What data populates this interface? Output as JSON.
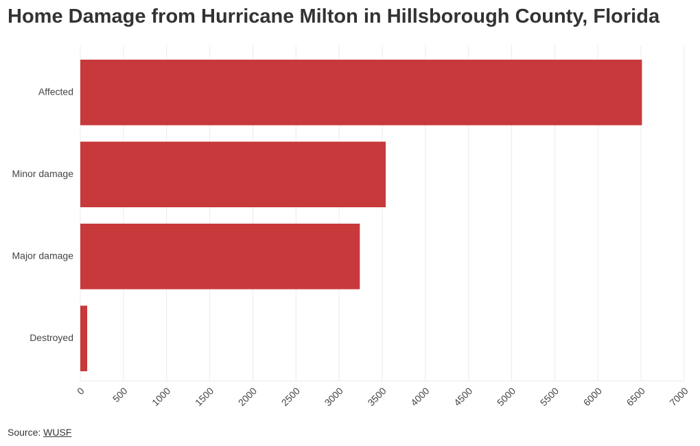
{
  "title": "Home Damage from Hurricane Milton in Hillsborough County, Florida",
  "source": {
    "prefix": "Source:",
    "link_text": "WUSF"
  },
  "colors": {
    "bar": "#c8393b",
    "grid": "#ebebeb",
    "axis_text": "#444444"
  },
  "chart_data": {
    "type": "bar",
    "orientation": "horizontal",
    "title": "Home Damage from Hurricane Milton in Hillsborough County, Florida",
    "categories": [
      "Affected",
      "Minor damage",
      "Major damage",
      "Destroyed"
    ],
    "values": [
      6510,
      3540,
      3240,
      80
    ],
    "xlabel": "",
    "ylabel": "",
    "xlim": [
      0,
      7000
    ],
    "xticks": [
      0,
      500,
      1000,
      1500,
      2000,
      2500,
      3000,
      3500,
      4000,
      4500,
      5000,
      5500,
      6000,
      6500,
      7000
    ],
    "grid": true,
    "legend": "none"
  }
}
